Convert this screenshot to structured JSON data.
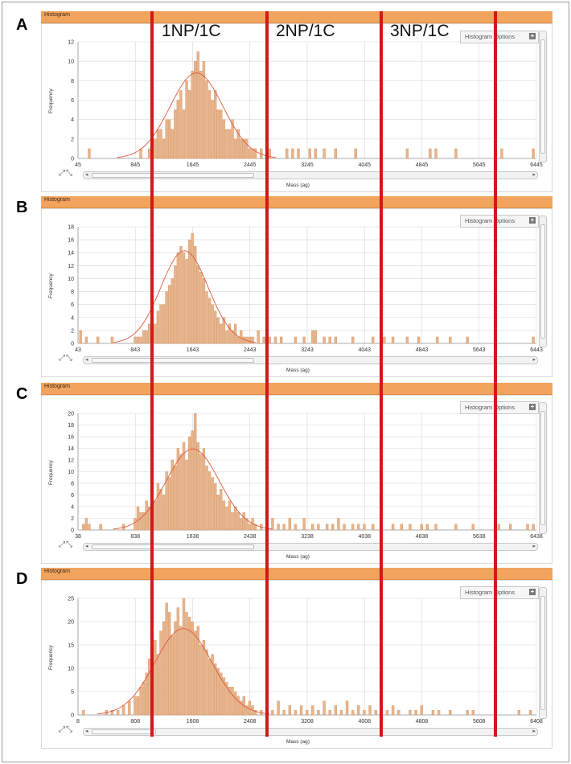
{
  "region_labels": [
    "1NP/1C",
    "2NP/1C",
    "3NP/1C"
  ],
  "colors": {
    "header": "#f2a35d",
    "bar": "#e7b48c",
    "bar_edge": "#d49563",
    "fit": "#e0583c",
    "divider": "#d21818",
    "grid": "#d8d8d8"
  },
  "panel_common": {
    "header_title": "Histogram",
    "options_label": "Histogram Options",
    "xlabel": "Mass (ag)",
    "ylabel": "Frequency"
  },
  "chart_data": [
    {
      "panel": "A",
      "type": "bar",
      "title": "Histogram",
      "xlabel": "Mass (ag)",
      "ylabel": "Frequency",
      "xlim": [
        45,
        6445
      ],
      "ylim": [
        0,
        12
      ],
      "xticks": [
        45,
        845,
        1645,
        2445,
        3245,
        4045,
        4845,
        5645,
        6445
      ],
      "yticks": [
        0,
        2,
        4,
        6,
        8,
        10,
        12
      ],
      "bin_width": 40,
      "bars": [
        [
          205,
          1
        ],
        [
          925,
          1
        ],
        [
          1045,
          1
        ],
        [
          1085,
          2
        ],
        [
          1125,
          2
        ],
        [
          1165,
          3
        ],
        [
          1205,
          3
        ],
        [
          1245,
          2
        ],
        [
          1285,
          4
        ],
        [
          1325,
          4
        ],
        [
          1365,
          3
        ],
        [
          1405,
          5
        ],
        [
          1445,
          6
        ],
        [
          1485,
          7
        ],
        [
          1525,
          5
        ],
        [
          1565,
          8
        ],
        [
          1605,
          7
        ],
        [
          1645,
          9
        ],
        [
          1685,
          10
        ],
        [
          1725,
          11
        ],
        [
          1765,
          9
        ],
        [
          1805,
          10
        ],
        [
          1845,
          8
        ],
        [
          1885,
          7
        ],
        [
          1925,
          6
        ],
        [
          1965,
          7
        ],
        [
          2005,
          5
        ],
        [
          2045,
          5
        ],
        [
          2085,
          4
        ],
        [
          2125,
          3
        ],
        [
          2165,
          3
        ],
        [
          2205,
          4
        ],
        [
          2245,
          2
        ],
        [
          2285,
          3
        ],
        [
          2325,
          2
        ],
        [
          2365,
          2
        ],
        [
          2405,
          2
        ],
        [
          2445,
          1
        ],
        [
          2485,
          1
        ],
        [
          2525,
          1
        ],
        [
          2605,
          1
        ],
        [
          2725,
          1
        ],
        [
          2965,
          1
        ],
        [
          3045,
          1
        ],
        [
          3125,
          1
        ],
        [
          3285,
          1
        ],
        [
          3365,
          1
        ],
        [
          3485,
          1
        ],
        [
          3645,
          1
        ],
        [
          3925,
          1
        ],
        [
          4645,
          1
        ],
        [
          4965,
          1
        ],
        [
          5045,
          1
        ],
        [
          5325,
          1
        ],
        [
          5965,
          1
        ],
        [
          6405,
          1
        ]
      ],
      "fit": {
        "model": "gaussian",
        "mean": 1700,
        "sd": 370,
        "peak": 8.8
      }
    },
    {
      "panel": "B",
      "type": "bar",
      "title": "Histogram",
      "xlabel": "Mass (ag)",
      "ylabel": "Frequency",
      "xlim": [
        43,
        6443
      ],
      "ylim": [
        0,
        18
      ],
      "xticks": [
        43,
        843,
        1643,
        2443,
        3243,
        4043,
        4843,
        5643,
        6443
      ],
      "yticks": [
        0,
        2,
        4,
        6,
        8,
        10,
        12,
        14,
        16,
        18
      ],
      "bin_width": 40,
      "bars": [
        [
          83,
          2
        ],
        [
          163,
          1
        ],
        [
          323,
          1
        ],
        [
          523,
          1
        ],
        [
          843,
          1
        ],
        [
          883,
          1
        ],
        [
          923,
          1
        ],
        [
          963,
          2
        ],
        [
          1003,
          2
        ],
        [
          1043,
          3
        ],
        [
          1083,
          4
        ],
        [
          1123,
          3
        ],
        [
          1163,
          5
        ],
        [
          1203,
          6
        ],
        [
          1243,
          6
        ],
        [
          1283,
          8
        ],
        [
          1323,
          9
        ],
        [
          1363,
          10
        ],
        [
          1403,
          12
        ],
        [
          1443,
          14
        ],
        [
          1483,
          15
        ],
        [
          1523,
          14
        ],
        [
          1563,
          13
        ],
        [
          1603,
          16
        ],
        [
          1643,
          17
        ],
        [
          1683,
          15
        ],
        [
          1723,
          12
        ],
        [
          1763,
          11
        ],
        [
          1803,
          10
        ],
        [
          1843,
          8
        ],
        [
          1883,
          7
        ],
        [
          1923,
          6
        ],
        [
          1963,
          5
        ],
        [
          2003,
          4
        ],
        [
          2043,
          3
        ],
        [
          2083,
          4
        ],
        [
          2123,
          2
        ],
        [
          2163,
          3
        ],
        [
          2203,
          2
        ],
        [
          2243,
          3
        ],
        [
          2283,
          1
        ],
        [
          2323,
          2
        ],
        [
          2363,
          1
        ],
        [
          2403,
          1
        ],
        [
          2443,
          1
        ],
        [
          2483,
          1
        ],
        [
          2563,
          2
        ],
        [
          2643,
          1
        ],
        [
          2723,
          1
        ],
        [
          2803,
          1
        ],
        [
          2883,
          1
        ],
        [
          3083,
          1
        ],
        [
          3203,
          1
        ],
        [
          3323,
          2
        ],
        [
          3363,
          2
        ],
        [
          3483,
          1
        ],
        [
          3563,
          1
        ],
        [
          3643,
          1
        ],
        [
          3883,
          1
        ],
        [
          4163,
          1
        ],
        [
          4323,
          1
        ],
        [
          4443,
          1
        ],
        [
          4643,
          1
        ],
        [
          4803,
          1
        ],
        [
          5063,
          1
        ],
        [
          5243,
          1
        ],
        [
          5483,
          1
        ],
        [
          6403,
          1
        ]
      ],
      "fit": {
        "model": "gaussian",
        "mean": 1530,
        "sd": 330,
        "peak": 14.3
      }
    },
    {
      "panel": "C",
      "type": "bar",
      "title": "Histogram",
      "xlabel": "Mass (ag)",
      "ylabel": "Frequency",
      "xlim": [
        38,
        6438
      ],
      "ylim": [
        0,
        20
      ],
      "xticks": [
        38,
        838,
        1638,
        2438,
        3238,
        4038,
        4838,
        5638,
        6438
      ],
      "yticks": [
        0,
        2,
        4,
        6,
        8,
        10,
        12,
        14,
        16,
        18,
        20
      ],
      "bin_width": 40,
      "bars": [
        [
          118,
          1
        ],
        [
          158,
          2
        ],
        [
          198,
          1
        ],
        [
          358,
          1
        ],
        [
          678,
          1
        ],
        [
          838,
          2
        ],
        [
          878,
          4
        ],
        [
          918,
          3
        ],
        [
          958,
          3
        ],
        [
          998,
          5
        ],
        [
          1038,
          4
        ],
        [
          1078,
          6
        ],
        [
          1118,
          5
        ],
        [
          1158,
          8
        ],
        [
          1198,
          7
        ],
        [
          1238,
          6
        ],
        [
          1278,
          10
        ],
        [
          1318,
          9
        ],
        [
          1358,
          12
        ],
        [
          1398,
          11
        ],
        [
          1438,
          14
        ],
        [
          1478,
          13
        ],
        [
          1518,
          15
        ],
        [
          1558,
          12
        ],
        [
          1598,
          16
        ],
        [
          1638,
          17
        ],
        [
          1678,
          20
        ],
        [
          1718,
          15
        ],
        [
          1758,
          13
        ],
        [
          1798,
          14
        ],
        [
          1838,
          11
        ],
        [
          1878,
          10
        ],
        [
          1918,
          9
        ],
        [
          1958,
          8
        ],
        [
          1998,
          6
        ],
        [
          2038,
          7
        ],
        [
          2078,
          5
        ],
        [
          2118,
          4
        ],
        [
          2158,
          5
        ],
        [
          2198,
          3
        ],
        [
          2238,
          4
        ],
        [
          2278,
          3
        ],
        [
          2318,
          2
        ],
        [
          2358,
          3
        ],
        [
          2398,
          2
        ],
        [
          2438,
          1
        ],
        [
          2478,
          2
        ],
        [
          2518,
          1
        ],
        [
          2598,
          1
        ],
        [
          2678,
          1
        ],
        [
          2758,
          2
        ],
        [
          2838,
          1
        ],
        [
          2918,
          1
        ],
        [
          2998,
          2
        ],
        [
          3078,
          1
        ],
        [
          3198,
          2
        ],
        [
          3318,
          1
        ],
        [
          3398,
          1
        ],
        [
          3518,
          1
        ],
        [
          3598,
          1
        ],
        [
          3678,
          2
        ],
        [
          3758,
          1
        ],
        [
          3878,
          1
        ],
        [
          3958,
          1
        ],
        [
          4038,
          1
        ],
        [
          4158,
          1
        ],
        [
          4278,
          1
        ],
        [
          4438,
          1
        ],
        [
          4558,
          1
        ],
        [
          4678,
          1
        ],
        [
          4838,
          1
        ],
        [
          4918,
          1
        ],
        [
          5038,
          1
        ],
        [
          5318,
          1
        ],
        [
          5558,
          1
        ],
        [
          5918,
          1
        ],
        [
          6078,
          1
        ],
        [
          6318,
          1
        ],
        [
          6398,
          1
        ]
      ],
      "fit": {
        "model": "gaussian",
        "mean": 1640,
        "sd": 370,
        "peak": 13.9
      }
    },
    {
      "panel": "D",
      "type": "bar",
      "title": "Histogram",
      "xlabel": "Mass (ag)",
      "ylabel": "Frequency",
      "xlim": [
        8,
        6408
      ],
      "ylim": [
        0,
        25
      ],
      "xticks": [
        8,
        808,
        1608,
        2408,
        3208,
        4008,
        4808,
        5608,
        6408
      ],
      "yticks": [
        0,
        5,
        10,
        15,
        20,
        25
      ],
      "bin_width": 40,
      "bars": [
        [
          88,
          1
        ],
        [
          408,
          1
        ],
        [
          488,
          1
        ],
        [
          568,
          1
        ],
        [
          648,
          2
        ],
        [
          728,
          3
        ],
        [
          808,
          4
        ],
        [
          848,
          4
        ],
        [
          888,
          6
        ],
        [
          928,
          7
        ],
        [
          968,
          9
        ],
        [
          1008,
          12
        ],
        [
          1048,
          14
        ],
        [
          1088,
          16
        ],
        [
          1128,
          13
        ],
        [
          1168,
          18
        ],
        [
          1208,
          20
        ],
        [
          1248,
          24
        ],
        [
          1288,
          22
        ],
        [
          1328,
          17
        ],
        [
          1368,
          20
        ],
        [
          1408,
          23
        ],
        [
          1448,
          19
        ],
        [
          1488,
          25
        ],
        [
          1528,
          22
        ],
        [
          1568,
          21
        ],
        [
          1608,
          20
        ],
        [
          1648,
          18
        ],
        [
          1688,
          19
        ],
        [
          1728,
          15
        ],
        [
          1768,
          16
        ],
        [
          1808,
          14
        ],
        [
          1848,
          12
        ],
        [
          1888,
          13
        ],
        [
          1928,
          11
        ],
        [
          1968,
          10
        ],
        [
          2008,
          9
        ],
        [
          2048,
          8
        ],
        [
          2088,
          7
        ],
        [
          2128,
          6
        ],
        [
          2168,
          6
        ],
        [
          2208,
          5
        ],
        [
          2248,
          4
        ],
        [
          2288,
          3
        ],
        [
          2328,
          4
        ],
        [
          2368,
          2
        ],
        [
          2408,
          3
        ],
        [
          2448,
          2
        ],
        [
          2488,
          1
        ],
        [
          2568,
          1
        ],
        [
          2648,
          2
        ],
        [
          2728,
          1
        ],
        [
          2808,
          3
        ],
        [
          2888,
          1
        ],
        [
          2968,
          2
        ],
        [
          3048,
          1
        ],
        [
          3128,
          2
        ],
        [
          3208,
          1
        ],
        [
          3288,
          2
        ],
        [
          3368,
          1
        ],
        [
          3448,
          3
        ],
        [
          3528,
          1
        ],
        [
          3608,
          2
        ],
        [
          3688,
          1
        ],
        [
          3768,
          3
        ],
        [
          3848,
          1
        ],
        [
          3928,
          2
        ],
        [
          4008,
          1
        ],
        [
          4088,
          2
        ],
        [
          4168,
          1
        ],
        [
          4248,
          2
        ],
        [
          4328,
          1
        ],
        [
          4408,
          2
        ],
        [
          4488,
          1
        ],
        [
          4648,
          1
        ],
        [
          4728,
          1
        ],
        [
          4808,
          2
        ],
        [
          4968,
          1
        ],
        [
          5048,
          1
        ],
        [
          5208,
          1
        ],
        [
          5448,
          1
        ],
        [
          5528,
          1
        ],
        [
          6168,
          1
        ],
        [
          6328,
          1
        ]
      ],
      "fit": {
        "model": "gaussian",
        "mean": 1480,
        "sd": 400,
        "peak": 18.5
      }
    }
  ]
}
